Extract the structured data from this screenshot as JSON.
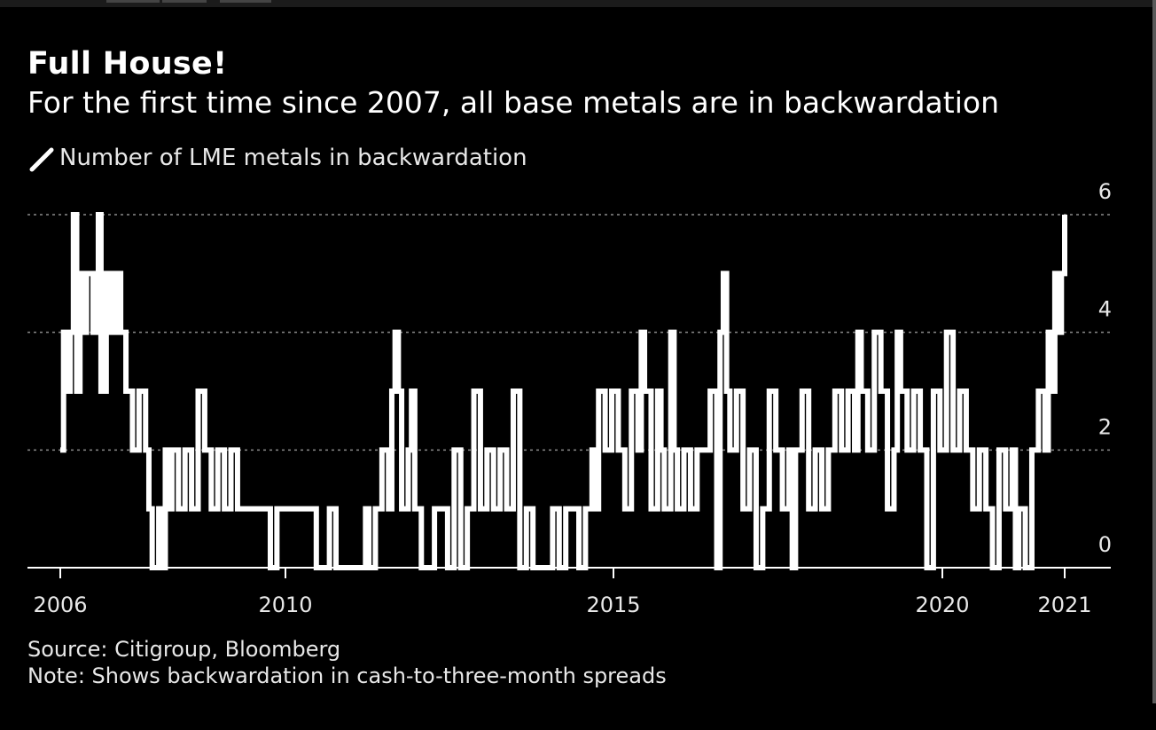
{
  "chart_data": {
    "type": "line",
    "title": "Full House!",
    "subtitle": "For the first time since 2007, all base metals are in backwardation",
    "legend": [
      {
        "name": "Number of LME metals in backwardation",
        "color": "#ffffff"
      }
    ],
    "legend_placement": "top-left",
    "x_ticks": [
      "2006",
      "2010",
      "2015",
      "2020",
      "2021"
    ],
    "y_ticks": [
      0,
      2,
      4,
      6
    ],
    "xlim": [
      2006,
      2021.35
    ],
    "ylim": [
      0,
      6
    ],
    "grid": "horizontal dotted",
    "y_axis_side": "right",
    "series": [
      {
        "name": "Number of LME metals in backwardation",
        "color": "#ffffff",
        "points": [
          [
            2006.0,
            2
          ],
          [
            2006.05,
            4
          ],
          [
            2006.1,
            3
          ],
          [
            2006.15,
            4
          ],
          [
            2006.2,
            6
          ],
          [
            2006.25,
            3
          ],
          [
            2006.3,
            5
          ],
          [
            2006.35,
            4
          ],
          [
            2006.4,
            5
          ],
          [
            2006.5,
            4
          ],
          [
            2006.58,
            6
          ],
          [
            2006.62,
            3
          ],
          [
            2006.7,
            5
          ],
          [
            2006.78,
            4
          ],
          [
            2006.85,
            5
          ],
          [
            2006.92,
            4
          ],
          [
            2007.0,
            3
          ],
          [
            2007.1,
            2
          ],
          [
            2007.2,
            3
          ],
          [
            2007.3,
            2
          ],
          [
            2007.35,
            1
          ],
          [
            2007.4,
            0
          ],
          [
            2007.5,
            1
          ],
          [
            2007.55,
            0
          ],
          [
            2007.6,
            2
          ],
          [
            2007.65,
            1
          ],
          [
            2007.7,
            2
          ],
          [
            2007.8,
            1
          ],
          [
            2007.9,
            2
          ],
          [
            2008.0,
            1
          ],
          [
            2008.1,
            3
          ],
          [
            2008.2,
            2
          ],
          [
            2008.3,
            1
          ],
          [
            2008.4,
            2
          ],
          [
            2008.5,
            1
          ],
          [
            2008.6,
            2
          ],
          [
            2008.7,
            1
          ],
          [
            2008.8,
            1
          ],
          [
            2009.0,
            1
          ],
          [
            2009.1,
            1
          ],
          [
            2009.2,
            0
          ],
          [
            2009.3,
            1
          ],
          [
            2009.4,
            1
          ],
          [
            2009.6,
            1
          ],
          [
            2009.8,
            1
          ],
          [
            2009.9,
            0
          ],
          [
            2010.0,
            0
          ],
          [
            2010.1,
            1
          ],
          [
            2010.2,
            0
          ],
          [
            2010.4,
            0
          ],
          [
            2010.6,
            0
          ],
          [
            2010.65,
            1
          ],
          [
            2010.7,
            0
          ],
          [
            2010.8,
            1
          ],
          [
            2010.9,
            2
          ],
          [
            2011.0,
            1
          ],
          [
            2011.05,
            3
          ],
          [
            2011.1,
            4
          ],
          [
            2011.15,
            3
          ],
          [
            2011.2,
            1
          ],
          [
            2011.3,
            2
          ],
          [
            2011.35,
            3
          ],
          [
            2011.4,
            1
          ],
          [
            2011.5,
            0
          ],
          [
            2011.6,
            0
          ],
          [
            2011.7,
            1
          ],
          [
            2011.8,
            1
          ],
          [
            2011.9,
            0
          ],
          [
            2012.0,
            2
          ],
          [
            2012.1,
            0
          ],
          [
            2012.2,
            1
          ],
          [
            2012.3,
            3
          ],
          [
            2012.4,
            1
          ],
          [
            2012.5,
            2
          ],
          [
            2012.6,
            1
          ],
          [
            2012.7,
            2
          ],
          [
            2012.8,
            1
          ],
          [
            2012.9,
            3
          ],
          [
            2013.0,
            0
          ],
          [
            2013.1,
            1
          ],
          [
            2013.2,
            0
          ],
          [
            2013.4,
            0
          ],
          [
            2013.5,
            1
          ],
          [
            2013.6,
            0
          ],
          [
            2013.7,
            1
          ],
          [
            2013.8,
            1
          ],
          [
            2013.9,
            0
          ],
          [
            2014.0,
            1
          ],
          [
            2014.1,
            2
          ],
          [
            2014.15,
            1
          ],
          [
            2014.2,
            3
          ],
          [
            2014.3,
            2
          ],
          [
            2014.4,
            3
          ],
          [
            2014.5,
            2
          ],
          [
            2014.6,
            1
          ],
          [
            2014.7,
            3
          ],
          [
            2014.8,
            2
          ],
          [
            2014.85,
            4
          ],
          [
            2014.9,
            3
          ],
          [
            2015.0,
            1
          ],
          [
            2015.1,
            3
          ],
          [
            2015.15,
            2
          ],
          [
            2015.2,
            1
          ],
          [
            2015.3,
            4
          ],
          [
            2015.35,
            2
          ],
          [
            2015.4,
            1
          ],
          [
            2015.5,
            2
          ],
          [
            2015.6,
            1
          ],
          [
            2015.7,
            2
          ],
          [
            2015.8,
            2
          ],
          [
            2015.9,
            3
          ],
          [
            2016.0,
            0
          ],
          [
            2016.05,
            4
          ],
          [
            2016.1,
            5
          ],
          [
            2016.15,
            3
          ],
          [
            2016.2,
            2
          ],
          [
            2016.3,
            3
          ],
          [
            2016.4,
            1
          ],
          [
            2016.5,
            2
          ],
          [
            2016.6,
            0
          ],
          [
            2016.7,
            1
          ],
          [
            2016.8,
            3
          ],
          [
            2016.9,
            2
          ],
          [
            2017.0,
            1
          ],
          [
            2017.1,
            2
          ],
          [
            2017.15,
            0
          ],
          [
            2017.2,
            2
          ],
          [
            2017.3,
            3
          ],
          [
            2017.4,
            1
          ],
          [
            2017.5,
            2
          ],
          [
            2017.6,
            1
          ],
          [
            2017.7,
            2
          ],
          [
            2017.8,
            3
          ],
          [
            2017.9,
            2
          ],
          [
            2018.0,
            3
          ],
          [
            2018.1,
            2
          ],
          [
            2018.15,
            4
          ],
          [
            2018.2,
            3
          ],
          [
            2018.3,
            2
          ],
          [
            2018.4,
            4
          ],
          [
            2018.5,
            3
          ],
          [
            2018.6,
            1
          ],
          [
            2018.7,
            2
          ],
          [
            2018.75,
            4
          ],
          [
            2018.8,
            3
          ],
          [
            2018.9,
            2
          ],
          [
            2019.0,
            3
          ],
          [
            2019.1,
            2
          ],
          [
            2019.2,
            0
          ],
          [
            2019.3,
            3
          ],
          [
            2019.4,
            2
          ],
          [
            2019.5,
            4
          ],
          [
            2019.6,
            2
          ],
          [
            2019.7,
            3
          ],
          [
            2019.8,
            2
          ],
          [
            2019.9,
            1
          ],
          [
            2020.0,
            2
          ],
          [
            2020.1,
            1
          ],
          [
            2020.2,
            0
          ],
          [
            2020.3,
            2
          ],
          [
            2020.4,
            1
          ],
          [
            2020.5,
            2
          ],
          [
            2020.55,
            0
          ],
          [
            2020.6,
            1
          ],
          [
            2020.7,
            0
          ],
          [
            2020.8,
            2
          ],
          [
            2020.9,
            3
          ],
          [
            2021.0,
            2
          ],
          [
            2021.05,
            4
          ],
          [
            2021.1,
            3
          ],
          [
            2021.15,
            5
          ],
          [
            2021.2,
            4
          ],
          [
            2021.25,
            5
          ],
          [
            2021.3,
            6
          ]
        ]
      }
    ],
    "source": "Source: Citigroup, Bloomberg",
    "note": "Note: Shows backwardation in cash-to-three-month spreads"
  }
}
